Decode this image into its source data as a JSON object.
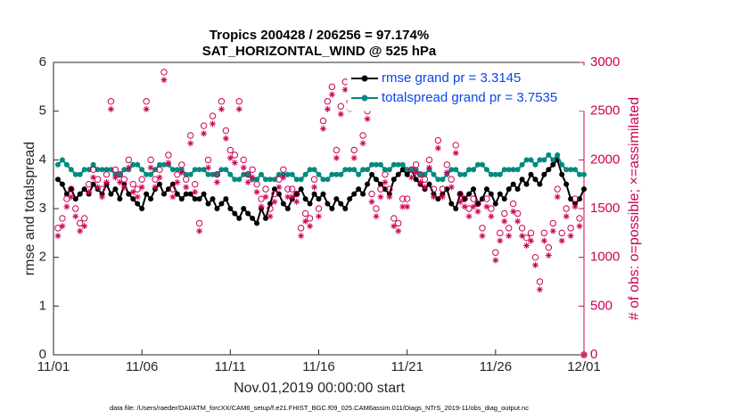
{
  "chart_data": {
    "type": "line",
    "title": "Tropics 200428 / 206256 = 97.174%",
    "subtitle": "SAT_HORIZONTAL_WIND @ 525 hPa",
    "xlabel": "Nov.01,2019 00:00:00 start",
    "ylabel": "rmse and totalspread",
    "y2label": "# of obs: o=possible; ×=assimilated",
    "footnote": "data file: /Users/raeder/DAI/ATM_forcXX/CAM6_setup/f.e21.FHIST_BGC.f09_025.CAM6assim.011/Diags_NTrS_2019-11/obs_diag_output.nc",
    "legend": "upper right",
    "grid": false,
    "xlim": [
      0,
      30
    ],
    "xticks": [
      {
        "value": 0,
        "label": "11/01"
      },
      {
        "value": 5,
        "label": "11/06"
      },
      {
        "value": 10,
        "label": "11/11"
      },
      {
        "value": 15,
        "label": "11/16"
      },
      {
        "value": 20,
        "label": "11/21"
      },
      {
        "value": 25,
        "label": "11/26"
      },
      {
        "value": 30,
        "label": "12/01"
      }
    ],
    "ylim": [
      0,
      6
    ],
    "yticks": [
      0,
      1,
      2,
      3,
      4,
      5,
      6
    ],
    "y2lim": [
      0,
      3000
    ],
    "y2ticks": [
      0,
      500,
      1000,
      1500,
      2000,
      2500,
      3000
    ],
    "y2color": "#cc0055",
    "x": [
      0.25,
      0.5,
      0.75,
      1,
      1.25,
      1.5,
      1.75,
      2,
      2.25,
      2.5,
      2.75,
      3,
      3.25,
      3.5,
      3.75,
      4,
      4.25,
      4.5,
      4.75,
      5,
      5.25,
      5.5,
      5.75,
      6,
      6.25,
      6.5,
      6.75,
      7,
      7.25,
      7.5,
      7.75,
      8,
      8.25,
      8.5,
      8.75,
      9,
      9.25,
      9.5,
      9.75,
      10,
      10.25,
      10.5,
      10.75,
      11,
      11.25,
      11.5,
      11.75,
      12,
      12.25,
      12.5,
      12.75,
      13,
      13.25,
      13.5,
      13.75,
      14,
      14.25,
      14.5,
      14.75,
      15,
      15.25,
      15.5,
      15.75,
      16,
      16.25,
      16.5,
      16.75,
      17,
      17.25,
      17.5,
      17.75,
      18,
      18.25,
      18.5,
      18.75,
      19,
      19.25,
      19.5,
      19.75,
      20,
      20.25,
      20.5,
      20.75,
      21,
      21.25,
      21.5,
      21.75,
      22,
      22.25,
      22.5,
      22.75,
      23,
      23.25,
      23.5,
      23.75,
      24,
      24.25,
      24.5,
      24.75,
      25,
      25.25,
      25.5,
      25.75,
      26,
      26.25,
      26.5,
      26.75,
      27,
      27.25,
      27.5,
      27.75,
      28,
      28.25,
      28.5,
      28.75,
      29,
      29.25,
      29.5,
      29.75,
      30
    ],
    "series": [
      {
        "name": "rmse grand pr = 3.3145",
        "color": "#000000",
        "marker": "dot",
        "line": true,
        "values": [
          3.6,
          3.5,
          3.3,
          3.4,
          3.2,
          3.3,
          3.4,
          3.3,
          3.5,
          3.4,
          3.3,
          3.5,
          3.3,
          3.4,
          3.2,
          3.5,
          3.3,
          3.2,
          3.1,
          3.0,
          3.3,
          3.2,
          3.4,
          3.5,
          3.3,
          3.4,
          3.5,
          3.3,
          3.2,
          3.3,
          3.3,
          3.2,
          3.2,
          3.3,
          3.1,
          3.2,
          3.0,
          3.1,
          3.2,
          3.0,
          2.9,
          2.8,
          3.0,
          2.9,
          2.8,
          2.7,
          3.0,
          2.8,
          3.1,
          3.4,
          3.3,
          3.1,
          3.0,
          3.2,
          3.3,
          3.4,
          3.2,
          3.1,
          3.3,
          3.2,
          3.3,
          3.1,
          3.0,
          3.2,
          3.1,
          3.0,
          3.2,
          3.3,
          3.4,
          3.3,
          3.5,
          3.7,
          3.6,
          3.5,
          3.4,
          3.3,
          3.6,
          3.7,
          3.8,
          3.7,
          3.8,
          3.6,
          3.5,
          3.4,
          3.5,
          3.3,
          3.2,
          3.3,
          3.4,
          3.1,
          3.0,
          3.3,
          3.2,
          3.3,
          3.4,
          3.1,
          3.2,
          3.4,
          3.3,
          3.1,
          3.3,
          3.2,
          3.4,
          3.5,
          3.4,
          3.6,
          3.5,
          3.7,
          3.6,
          3.5,
          3.7,
          3.8,
          3.9,
          4.0,
          3.7,
          3.5,
          3.2,
          3.1,
          3.2,
          3.4
        ]
      },
      {
        "name": "totalspread grand pr = 3.7535",
        "color": "#008a80",
        "marker": "dot",
        "line": true,
        "values": [
          3.9,
          4.0,
          3.9,
          3.8,
          3.7,
          3.7,
          3.8,
          3.8,
          3.9,
          3.8,
          3.8,
          3.8,
          3.8,
          3.7,
          3.7,
          3.8,
          3.8,
          3.9,
          3.9,
          3.8,
          3.7,
          3.7,
          3.8,
          3.9,
          3.9,
          3.9,
          3.8,
          3.8,
          3.8,
          3.7,
          3.7,
          3.8,
          3.8,
          3.8,
          3.7,
          3.7,
          3.7,
          3.8,
          3.8,
          3.7,
          3.6,
          3.6,
          3.7,
          3.7,
          3.6,
          3.6,
          3.7,
          3.6,
          3.6,
          3.6,
          3.7,
          3.7,
          3.7,
          3.7,
          3.6,
          3.6,
          3.7,
          3.8,
          3.8,
          3.7,
          3.6,
          3.6,
          3.7,
          3.7,
          3.7,
          3.8,
          3.8,
          3.8,
          3.7,
          3.8,
          3.8,
          3.9,
          3.9,
          3.9,
          3.8,
          3.8,
          3.9,
          3.9,
          3.9,
          3.8,
          3.8,
          3.8,
          3.7,
          3.7,
          3.8,
          3.7,
          3.6,
          3.6,
          3.7,
          3.8,
          3.8,
          3.7,
          3.7,
          3.8,
          3.8,
          3.9,
          3.9,
          3.8,
          3.7,
          3.7,
          3.7,
          3.8,
          3.8,
          3.8,
          3.8,
          3.9,
          4.0,
          4.0,
          3.9,
          4.0,
          4.0,
          4.1,
          4.0,
          4.1,
          3.9,
          3.8,
          3.8,
          3.8,
          3.7,
          3.7
        ]
      },
      {
        "color": "#cc0055",
        "marker": "o",
        "line": false,
        "axis": "y2",
        "values": [
          1300,
          1400,
          1600,
          1700,
          1500,
          1350,
          1400,
          1750,
          1900,
          1800,
          1700,
          1850,
          2600,
          1900,
          1850,
          1800,
          2000,
          1750,
          1700,
          1800,
          2600,
          2000,
          1800,
          1900,
          2900,
          2050,
          1700,
          1850,
          1950,
          1800,
          2250,
          1750,
          1350,
          2350,
          2000,
          2450,
          1850,
          2600,
          2300,
          2100,
          2050,
          2600,
          2000,
          1850,
          1900,
          1750,
          1600,
          1700,
          1500,
          1650,
          1800,
          1900,
          1700,
          1700,
          1650,
          1300,
          1450,
          1400,
          1800,
          1500,
          2400,
          2600,
          2750,
          2100,
          2550,
          2800,
          2600,
          2100,
          2650,
          2250,
          2500,
          1650,
          1500,
          1700,
          1850,
          1700,
          1400,
          1350,
          1600,
          1600,
          1900,
          1950,
          1850,
          1800,
          2000,
          1700,
          2200,
          1700,
          1950,
          1800,
          2150,
          1650,
          1600,
          1500,
          1600,
          1550,
          1300,
          1600,
          1500,
          1050,
          1250,
          1450,
          1300,
          1550,
          1450,
          1300,
          1200,
          1250,
          1000,
          750,
          1250,
          1100,
          1350,
          1700,
          1250,
          1500,
          1300,
          1600,
          1400,
          0
        ]
      },
      {
        "color": "#cc0055",
        "marker": "*",
        "line": false,
        "axis": "y2",
        "values": [
          1220,
          1320,
          1520,
          1620,
          1420,
          1270,
          1320,
          1670,
          1820,
          1720,
          1620,
          1770,
          2520,
          1820,
          1770,
          1720,
          1920,
          1670,
          1620,
          1720,
          2520,
          1920,
          1720,
          1820,
          2820,
          1970,
          1620,
          1770,
          1870,
          1720,
          2170,
          1670,
          1270,
          2270,
          1920,
          2370,
          1770,
          2520,
          2220,
          2020,
          1970,
          2520,
          1920,
          1770,
          1820,
          1670,
          1520,
          1620,
          1420,
          1570,
          1720,
          1820,
          1620,
          1620,
          1570,
          1220,
          1370,
          1320,
          1720,
          1420,
          2320,
          2520,
          2670,
          2020,
          2470,
          2720,
          2520,
          2020,
          2570,
          2170,
          2420,
          1570,
          1420,
          1620,
          1770,
          1620,
          1320,
          1270,
          1520,
          1520,
          1820,
          1870,
          1770,
          1720,
          1920,
          1620,
          2120,
          1620,
          1870,
          1720,
          2070,
          1570,
          1520,
          1420,
          1520,
          1470,
          1220,
          1520,
          1420,
          970,
          1170,
          1370,
          1220,
          1470,
          1370,
          1220,
          1120,
          1170,
          920,
          670,
          1170,
          1020,
          1270,
          1620,
          1170,
          1420,
          1220,
          1520,
          1320,
          0
        ]
      }
    ]
  }
}
